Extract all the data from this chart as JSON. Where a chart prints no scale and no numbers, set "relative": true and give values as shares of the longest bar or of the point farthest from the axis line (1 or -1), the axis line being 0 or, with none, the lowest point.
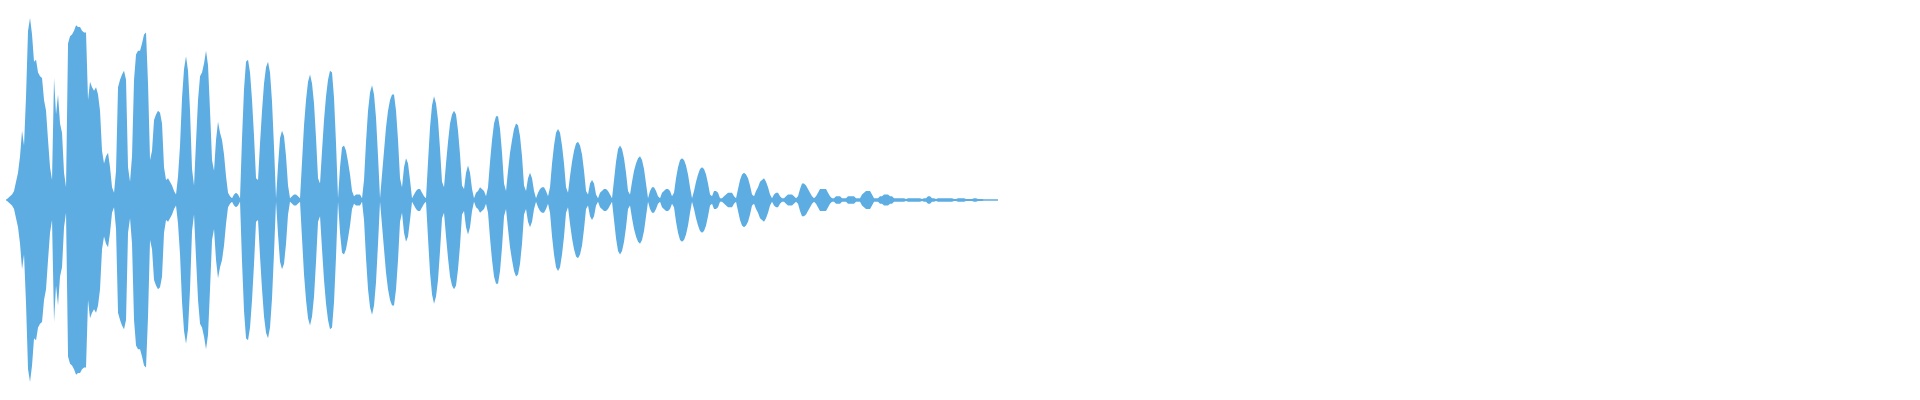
{
  "chart_data": {
    "type": "area",
    "relative": true,
    "categories": [
      null,
      null,
      null,
      null,
      null,
      null,
      null,
      null,
      null,
      null,
      null,
      null,
      null,
      null,
      null,
      null,
      null,
      null,
      null,
      null,
      null,
      null,
      null,
      null,
      null,
      null,
      null,
      null,
      null,
      null,
      null,
      null,
      null,
      null,
      null,
      null,
      null,
      null,
      null,
      null,
      null,
      null,
      null,
      null,
      null,
      null,
      null,
      null,
      null,
      null,
      null,
      null,
      null,
      null,
      null,
      null,
      null,
      null,
      null,
      null,
      null,
      null,
      null,
      null,
      null,
      null,
      null,
      null,
      null,
      null,
      null,
      null,
      null,
      null,
      null,
      null,
      null,
      null,
      null,
      null,
      null,
      null,
      null,
      null,
      null,
      null,
      null,
      null,
      null,
      null,
      null,
      null,
      null,
      null,
      null,
      null,
      null,
      null,
      null,
      null,
      null,
      null,
      null,
      null,
      null,
      null,
      null,
      null,
      null,
      null,
      null,
      null,
      null,
      null,
      null,
      null,
      null,
      null,
      null,
      null,
      null,
      null,
      null,
      null,
      null,
      null,
      null,
      null,
      null,
      null,
      null,
      null,
      null,
      null,
      null,
      null,
      null,
      null,
      null,
      null,
      null,
      null,
      null,
      null,
      null,
      null,
      null,
      null,
      null,
      null,
      null,
      null,
      null,
      null,
      null,
      null,
      null,
      null,
      null,
      null,
      null,
      null,
      null,
      null,
      null,
      null,
      null,
      null,
      null,
      null,
      null,
      null,
      null,
      null,
      null,
      null,
      null,
      null,
      null,
      null,
      null,
      null,
      null,
      null,
      null,
      null,
      null,
      null,
      null,
      null,
      null,
      null,
      null,
      null,
      null,
      null,
      null,
      null,
      null,
      null,
      null,
      null,
      null,
      null,
      null,
      null,
      null,
      null,
      null,
      null,
      null,
      null,
      null,
      null,
      null,
      null,
      null,
      null,
      null,
      null,
      null,
      null,
      null,
      null,
      null,
      null,
      null,
      null,
      null,
      null,
      null,
      null,
      null,
      null,
      null,
      null,
      null,
      null,
      null,
      null,
      null,
      null,
      null,
      null,
      null,
      null,
      null,
      null,
      null,
      null,
      null,
      null,
      null,
      null,
      null,
      null,
      null,
      null,
      null,
      null,
      null,
      null,
      null,
      null,
      null,
      null,
      null,
      null,
      null,
      null,
      null,
      null,
      null,
      null,
      null,
      null,
      null,
      null,
      null,
      null,
      null,
      null,
      null,
      null,
      null,
      null,
      null,
      null,
      null,
      null,
      null,
      null,
      null,
      null,
      null,
      null,
      null,
      null,
      null,
      null,
      null,
      null,
      null,
      null,
      null,
      null,
      null,
      null,
      null,
      null,
      null,
      null,
      null,
      null,
      null,
      null,
      null,
      null,
      null,
      null,
      null,
      null,
      null,
      null,
      null,
      null,
      null,
      null,
      null,
      null,
      null,
      null,
      null,
      null,
      null,
      null,
      null,
      null,
      null,
      null,
      null,
      null,
      null,
      null,
      null,
      null,
      null,
      null,
      null,
      null,
      null,
      null,
      null,
      null,
      null,
      null,
      null,
      null,
      null,
      null,
      null,
      null,
      null,
      null,
      null,
      null,
      null,
      null,
      null,
      null,
      null,
      null,
      null,
      null,
      null,
      null,
      null,
      null,
      null,
      null,
      null,
      null,
      null,
      null,
      null,
      null,
      null,
      null,
      null,
      null,
      null,
      null,
      null,
      null,
      null,
      null,
      null,
      null,
      null,
      null,
      null,
      null,
      null,
      null,
      null,
      null,
      null,
      null,
      null,
      null,
      null,
      null,
      null,
      null,
      null,
      null,
      null,
      null,
      null,
      null,
      null,
      null,
      null,
      null,
      null,
      null,
      null,
      null,
      null,
      null,
      null,
      null,
      null,
      null,
      null,
      null,
      null,
      null,
      null,
      null,
      null,
      null,
      null,
      null,
      null,
      null,
      null,
      null,
      null,
      null,
      null,
      null,
      null,
      null,
      null,
      null,
      null,
      null,
      null,
      null,
      null,
      null,
      null,
      null,
      null,
      null,
      null,
      null,
      null,
      null,
      null,
      null,
      null,
      null,
      null,
      null,
      null,
      null,
      null,
      null,
      null,
      null,
      null,
      null,
      null,
      null,
      null,
      null,
      null,
      null,
      null,
      null,
      null,
      null,
      null,
      null,
      null
    ],
    "series": [
      {
        "color": "#5dade2",
        "values": [
          0,
          0.01,
          0.02,
          0.03,
          0.05,
          0.1,
          0.15,
          0.24,
          0.38,
          0.3,
          0.57,
          0.93,
          1,
          0.91,
          0.76,
          0.77,
          0.7,
          0.68,
          0.67,
          0.55,
          0.49,
          0.33,
          0.18,
          0.11,
          0.67,
          0.47,
          0.58,
          0.42,
          0.37,
          0.15,
          0.07,
          0.86,
          0.9,
          0.91,
          0.93,
          0.96,
          0.95,
          0.95,
          0.93,
          0.92,
          0.92,
          0.55,
          0.65,
          0.62,
          0.6,
          0.62,
          0.58,
          0.49,
          0.27,
          0.2,
          0.24,
          0.26,
          0.18,
          0.07,
          0.04,
          0.16,
          0.62,
          0.66,
          0.69,
          0.71,
          0.66,
          0.18,
          0.1,
          0.24,
          0.66,
          0.8,
          0.82,
          0.82,
          0.86,
          0.91,
          0.92,
          0.64,
          0.22,
          0.27,
          0.44,
          0.47,
          0.49,
          0.48,
          0.42,
          0.18,
          0.11,
          0.12,
          0.1,
          0.08,
          0.05,
          0.03,
          0.13,
          0.3,
          0.56,
          0.72,
          0.79,
          0.71,
          0.49,
          0.17,
          0.08,
          0.32,
          0.55,
          0.68,
          0.7,
          0.75,
          0.82,
          0.74,
          0.49,
          0.22,
          0.16,
          0.33,
          0.43,
          0.37,
          0.33,
          0.25,
          0.13,
          0.04,
          0.02,
          0.01,
          0.03,
          0.04,
          0.03,
          0.01,
          0.34,
          0.61,
          0.76,
          0.77,
          0.7,
          0.55,
          0.35,
          0.12,
          0.11,
          0.31,
          0.49,
          0.64,
          0.73,
          0.76,
          0.7,
          0.54,
          0.29,
          0.01,
          0.19,
          0.34,
          0.38,
          0.35,
          0.24,
          0.08,
          0.01,
          0.02,
          0.03,
          0.03,
          0.02,
          0.01,
          0.21,
          0.41,
          0.55,
          0.65,
          0.69,
          0.64,
          0.53,
          0.34,
          0.12,
          0.09,
          0.27,
          0.44,
          0.57,
          0.66,
          0.71,
          0.7,
          0.56,
          0.31,
          0.01,
          0.18,
          0.29,
          0.3,
          0.27,
          0.21,
          0.14,
          0.05,
          0.02,
          0.03,
          0.03,
          0.03,
          0.01,
          0.11,
          0.32,
          0.49,
          0.59,
          0.63,
          0.58,
          0.45,
          0.24,
          0.01,
          0.14,
          0.27,
          0.4,
          0.49,
          0.55,
          0.58,
          0.58,
          0.49,
          0.33,
          0.12,
          0.07,
          0.18,
          0.23,
          0.2,
          0.11,
          0.01,
          0.03,
          0.05,
          0.06,
          0.06,
          0.04,
          0.02,
          0.01,
          0.21,
          0.4,
          0.52,
          0.57,
          0.53,
          0.44,
          0.28,
          0.1,
          0.07,
          0.2,
          0.32,
          0.42,
          0.47,
          0.49,
          0.47,
          0.38,
          0.25,
          0.08,
          0.06,
          0.15,
          0.19,
          0.15,
          0.06,
          0.01,
          0.04,
          0.05,
          0.07,
          0.06,
          0.05,
          0.02,
          0.07,
          0.21,
          0.33,
          0.42,
          0.46,
          0.46,
          0.39,
          0.26,
          0.09,
          0.05,
          0.16,
          0.26,
          0.33,
          0.39,
          0.42,
          0.41,
          0.35,
          0.24,
          0.08,
          0.05,
          0.12,
          0.15,
          0.12,
          0.05,
          0.01,
          0.04,
          0.06,
          0.07,
          0.07,
          0.05,
          0.02,
          0.07,
          0.2,
          0.3,
          0.37,
          0.39,
          0.37,
          0.3,
          0.2,
          0.07,
          0.04,
          0.13,
          0.21,
          0.27,
          0.31,
          0.32,
          0.3,
          0.25,
          0.16,
          0.05,
          0.03,
          0.09,
          0.11,
          0.09,
          0.03,
          0.01,
          0.04,
          0.05,
          0.06,
          0.06,
          0.05,
          0.03,
          0.01,
          0.11,
          0.21,
          0.28,
          0.3,
          0.28,
          0.23,
          0.15,
          0.05,
          0.03,
          0.1,
          0.16,
          0.2,
          0.23,
          0.24,
          0.22,
          0.17,
          0.09,
          0.01,
          0.05,
          0.07,
          0.07,
          0.05,
          0.02,
          0.01,
          0.04,
          0.05,
          0.06,
          0.06,
          0.05,
          0.02,
          0.04,
          0.12,
          0.18,
          0.22,
          0.23,
          0.22,
          0.19,
          0.14,
          0.07,
          0.01,
          0.05,
          0.1,
          0.14,
          0.17,
          0.18,
          0.17,
          0.14,
          0.09,
          0.03,
          0.02,
          0.05,
          0.05,
          0.04,
          0.01,
          0.01,
          0.02,
          0.03,
          0.04,
          0.04,
          0.04,
          0.02,
          0.01,
          0.06,
          0.11,
          0.14,
          0.15,
          0.14,
          0.12,
          0.08,
          0.03,
          0.02,
          0.05,
          0.07,
          0.1,
          0.11,
          0.12,
          0.1,
          0.07,
          0.03,
          0.01,
          0.03,
          0.04,
          0.04,
          0.02,
          0.01,
          0.01,
          0.02,
          0.03,
          0.03,
          0.03,
          0.02,
          0.01,
          0.02,
          0.06,
          0.09,
          0.09,
          0.08,
          0.06,
          0.04,
          0.02,
          0.01,
          0.02,
          0.04,
          0.06,
          0.06,
          0.06,
          0.06,
          0.04,
          0.02,
          0.01,
          0.01,
          0.02,
          0.02,
          0.02,
          0.01,
          0.01,
          0.01,
          0.02,
          0.02,
          0.02,
          0.02,
          0.01,
          0.01,
          0.01,
          0.03,
          0.04,
          0.05,
          0.05,
          0.05,
          0.03,
          0.01,
          0.01,
          0.01,
          0.02,
          0.02,
          0.03,
          0.03,
          0.03,
          0.02,
          0.02,
          0.01,
          0.01,
          0.01,
          0.01,
          0.01,
          0.01,
          0.005,
          0.01,
          0.01,
          0.01,
          0.01,
          0.01,
          0.01,
          0.01,
          0.005,
          0.01,
          0.01,
          0.02,
          0.02,
          0.01,
          0.01,
          0.005,
          0.01,
          0.01,
          0.01,
          0.01,
          0.01,
          0.01,
          0.01,
          0.01,
          0.005,
          0.005,
          0.01,
          0.01,
          0.01,
          0.01,
          0.005,
          0.005,
          0.005,
          0.005,
          0.01,
          0.01,
          0.005,
          0.005,
          0.005,
          0.003,
          0.003,
          0.003,
          0.003,
          0.003,
          0.003,
          0.003,
          0.003
        ]
      },
      {
        "color": "#5dade2",
        "values": [
          0,
          -0.01,
          -0.02,
          -0.03,
          -0.05,
          -0.1,
          -0.15,
          -0.24,
          -0.38,
          -0.3,
          -0.57,
          -0.93,
          -1,
          -0.91,
          -0.76,
          -0.77,
          -0.7,
          -0.68,
          -0.67,
          -0.55,
          -0.49,
          -0.33,
          -0.18,
          -0.11,
          -0.67,
          -0.47,
          -0.58,
          -0.42,
          -0.37,
          -0.15,
          -0.07,
          -0.86,
          -0.9,
          -0.91,
          -0.93,
          -0.96,
          -0.95,
          -0.95,
          -0.93,
          -0.92,
          -0.92,
          -0.55,
          -0.65,
          -0.62,
          -0.6,
          -0.62,
          -0.58,
          -0.49,
          -0.27,
          -0.2,
          -0.24,
          -0.26,
          -0.18,
          -0.07,
          -0.04,
          -0.16,
          -0.62,
          -0.66,
          -0.69,
          -0.71,
          -0.66,
          -0.18,
          -0.1,
          -0.24,
          -0.66,
          -0.8,
          -0.82,
          -0.82,
          -0.86,
          -0.91,
          -0.92,
          -0.64,
          -0.22,
          -0.27,
          -0.44,
          -0.47,
          -0.49,
          -0.48,
          -0.42,
          -0.18,
          -0.11,
          -0.12,
          -0.1,
          -0.08,
          -0.05,
          -0.03,
          -0.13,
          -0.3,
          -0.56,
          -0.72,
          -0.79,
          -0.71,
          -0.49,
          -0.17,
          -0.08,
          -0.32,
          -0.55,
          -0.68,
          -0.7,
          -0.75,
          -0.82,
          -0.74,
          -0.49,
          -0.22,
          -0.16,
          -0.33,
          -0.43,
          -0.37,
          -0.33,
          -0.25,
          -0.13,
          -0.04,
          -0.02,
          -0.01,
          -0.03,
          -0.04,
          -0.03,
          -0.01,
          -0.34,
          -0.61,
          -0.76,
          -0.77,
          -0.7,
          -0.55,
          -0.35,
          -0.12,
          -0.11,
          -0.31,
          -0.49,
          -0.64,
          -0.73,
          -0.76,
          -0.7,
          -0.54,
          -0.29,
          -0.01,
          -0.19,
          -0.34,
          -0.38,
          -0.35,
          -0.24,
          -0.08,
          -0.01,
          -0.02,
          -0.03,
          -0.03,
          -0.02,
          -0.01,
          -0.21,
          -0.41,
          -0.55,
          -0.65,
          -0.69,
          -0.64,
          -0.53,
          -0.34,
          -0.12,
          -0.09,
          -0.27,
          -0.44,
          -0.57,
          -0.66,
          -0.71,
          -0.7,
          -0.56,
          -0.31,
          -0.01,
          -0.18,
          -0.29,
          -0.3,
          -0.27,
          -0.21,
          -0.14,
          -0.05,
          -0.02,
          -0.03,
          -0.03,
          -0.03,
          -0.01,
          -0.11,
          -0.32,
          -0.49,
          -0.59,
          -0.63,
          -0.58,
          -0.45,
          -0.24,
          -0.01,
          -0.14,
          -0.27,
          -0.4,
          -0.49,
          -0.55,
          -0.58,
          -0.58,
          -0.49,
          -0.33,
          -0.12,
          -0.07,
          -0.18,
          -0.23,
          -0.2,
          -0.11,
          -0.01,
          -0.03,
          -0.05,
          -0.06,
          -0.06,
          -0.04,
          -0.02,
          -0.01,
          -0.21,
          -0.4,
          -0.52,
          -0.57,
          -0.53,
          -0.44,
          -0.28,
          -0.1,
          -0.07,
          -0.2,
          -0.32,
          -0.42,
          -0.47,
          -0.49,
          -0.47,
          -0.38,
          -0.25,
          -0.08,
          -0.06,
          -0.15,
          -0.19,
          -0.15,
          -0.06,
          -0.01,
          -0.04,
          -0.05,
          -0.07,
          -0.06,
          -0.05,
          -0.02,
          -0.07,
          -0.21,
          -0.33,
          -0.42,
          -0.46,
          -0.46,
          -0.39,
          -0.26,
          -0.09,
          -0.05,
          -0.16,
          -0.26,
          -0.33,
          -0.39,
          -0.42,
          -0.41,
          -0.35,
          -0.24,
          -0.08,
          -0.05,
          -0.12,
          -0.15,
          -0.12,
          -0.05,
          -0.01,
          -0.04,
          -0.06,
          -0.07,
          -0.07,
          -0.05,
          -0.02,
          -0.07,
          -0.2,
          -0.3,
          -0.37,
          -0.39,
          -0.37,
          -0.3,
          -0.2,
          -0.07,
          -0.04,
          -0.13,
          -0.21,
          -0.27,
          -0.31,
          -0.32,
          -0.3,
          -0.25,
          -0.16,
          -0.05,
          -0.03,
          -0.09,
          -0.11,
          -0.09,
          -0.03,
          -0.01,
          -0.04,
          -0.05,
          -0.06,
          -0.06,
          -0.05,
          -0.03,
          -0.01,
          -0.11,
          -0.21,
          -0.28,
          -0.3,
          -0.28,
          -0.23,
          -0.15,
          -0.05,
          -0.03,
          -0.1,
          -0.16,
          -0.2,
          -0.23,
          -0.24,
          -0.22,
          -0.17,
          -0.09,
          -0.01,
          -0.05,
          -0.07,
          -0.07,
          -0.05,
          -0.02,
          -0.01,
          -0.04,
          -0.05,
          -0.06,
          -0.06,
          -0.05,
          -0.02,
          -0.04,
          -0.12,
          -0.18,
          -0.22,
          -0.23,
          -0.22,
          -0.19,
          -0.14,
          -0.07,
          -0.01,
          -0.05,
          -0.1,
          -0.14,
          -0.17,
          -0.18,
          -0.17,
          -0.14,
          -0.09,
          -0.03,
          -0.02,
          -0.05,
          -0.05,
          -0.04,
          -0.01,
          -0.01,
          -0.02,
          -0.03,
          -0.04,
          -0.04,
          -0.04,
          -0.02,
          -0.01,
          -0.06,
          -0.11,
          -0.14,
          -0.15,
          -0.14,
          -0.12,
          -0.08,
          -0.03,
          -0.02,
          -0.05,
          -0.07,
          -0.1,
          -0.11,
          -0.12,
          -0.1,
          -0.07,
          -0.03,
          -0.01,
          -0.03,
          -0.04,
          -0.04,
          -0.02,
          -0.01,
          -0.01,
          -0.02,
          -0.03,
          -0.03,
          -0.03,
          -0.02,
          -0.01,
          -0.02,
          -0.06,
          -0.09,
          -0.09,
          -0.08,
          -0.06,
          -0.04,
          -0.02,
          -0.01,
          -0.02,
          -0.04,
          -0.06,
          -0.06,
          -0.06,
          -0.06,
          -0.04,
          -0.02,
          -0.01,
          -0.01,
          -0.02,
          -0.02,
          -0.02,
          -0.01,
          -0.01,
          -0.01,
          -0.02,
          -0.02,
          -0.02,
          -0.02,
          -0.01,
          -0.01,
          -0.01,
          -0.03,
          -0.04,
          -0.05,
          -0.05,
          -0.05,
          -0.03,
          -0.01,
          -0.01,
          -0.01,
          -0.02,
          -0.02,
          -0.03,
          -0.03,
          -0.03,
          -0.02,
          -0.02,
          -0.01,
          -0.01,
          -0.01,
          -0.01,
          -0.01,
          -0.01,
          -0.005,
          -0.01,
          -0.01,
          -0.01,
          -0.01,
          -0.01,
          -0.01,
          -0.01,
          -0.005,
          -0.01,
          -0.01,
          -0.02,
          -0.02,
          -0.01,
          -0.01,
          -0.005,
          -0.01,
          -0.01,
          -0.01,
          -0.01,
          -0.01,
          -0.01,
          -0.01,
          -0.01,
          -0.005,
          -0.005,
          -0.01,
          -0.01,
          -0.01,
          -0.01,
          -0.005,
          -0.005,
          -0.005,
          -0.005,
          -0.01,
          -0.01,
          -0.005,
          -0.005,
          -0.005,
          -0.003,
          -0.003,
          -0.003,
          -0.003,
          -0.003,
          -0.003,
          -0.003,
          -0.003
        ]
      }
    ]
  }
}
